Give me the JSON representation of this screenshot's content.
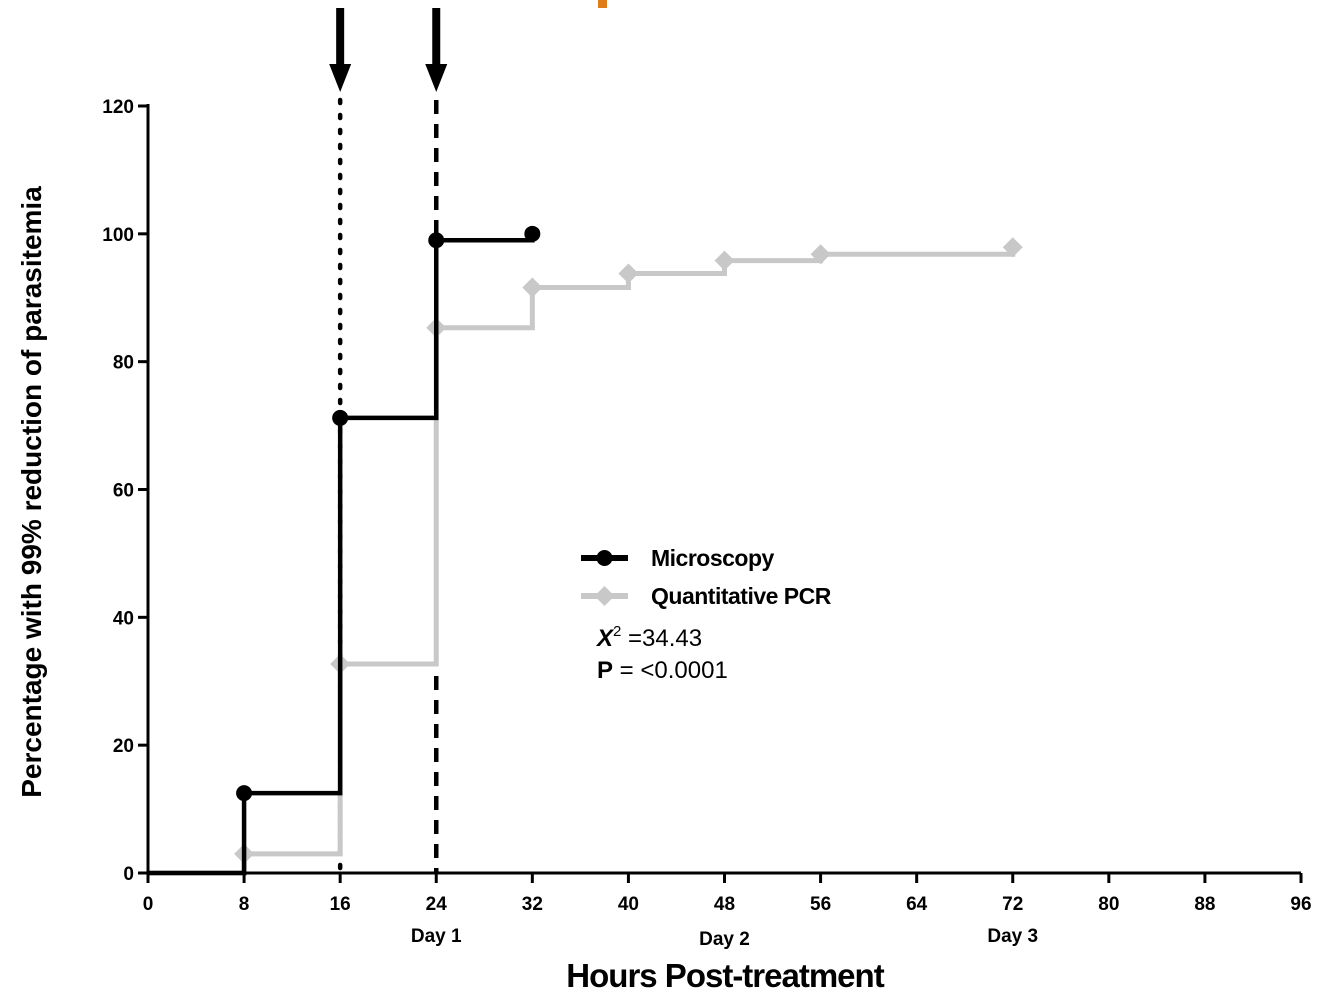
{
  "chart_data": {
    "type": "line",
    "step": true,
    "title": "",
    "xlabel": "Hours Post-treatment",
    "ylabel": "Percentage with 99% reduction of parasitemia",
    "xlim": [
      0,
      96
    ],
    "ylim": [
      0,
      120
    ],
    "xticks": [
      0,
      8,
      16,
      24,
      32,
      40,
      48,
      56,
      64,
      72,
      80,
      88,
      96
    ],
    "xtick_labels": [
      "0",
      "8",
      "16",
      "24",
      "32",
      "40",
      "48",
      "56",
      "64",
      "72",
      "80",
      "88",
      "96"
    ],
    "yticks": [
      0,
      20,
      40,
      60,
      80,
      100,
      120
    ],
    "ytick_labels": [
      "0",
      "20",
      "40",
      "60",
      "80",
      "100",
      "120"
    ],
    "day_labels": [
      {
        "x": 24,
        "label": "Day 1"
      },
      {
        "x": 48,
        "label": "Day 2"
      },
      {
        "x": 72,
        "label": "Day 3"
      }
    ],
    "series": [
      {
        "name": "Microscopy",
        "color": "#000000",
        "marker": "circle",
        "x": [
          0,
          8,
          16,
          24,
          32
        ],
        "y": [
          0,
          12.5,
          71.2,
          99,
          100
        ]
      },
      {
        "name": "Quantitative PCR",
        "color": "#c8c8c8",
        "marker": "diamond",
        "x": [
          0,
          8,
          16,
          24,
          32,
          40,
          48,
          56,
          72
        ],
        "y": [
          0,
          3,
          32.7,
          85.3,
          91.6,
          93.8,
          95.8,
          96.8,
          97.9
        ]
      }
    ],
    "reference_lines": [
      {
        "x": 16,
        "style": "dotted",
        "arrow": true
      },
      {
        "x": 24,
        "style": "dashed",
        "arrow": true
      }
    ],
    "legend_position": "center",
    "annotations": {
      "chi_symbol": "X",
      "chi_exp": "2",
      "chi_value": " =34.43",
      "p_label": "P",
      "p_value": " = <0.0001"
    },
    "grid": false,
    "accent_mark_color": "#e07b1a"
  }
}
